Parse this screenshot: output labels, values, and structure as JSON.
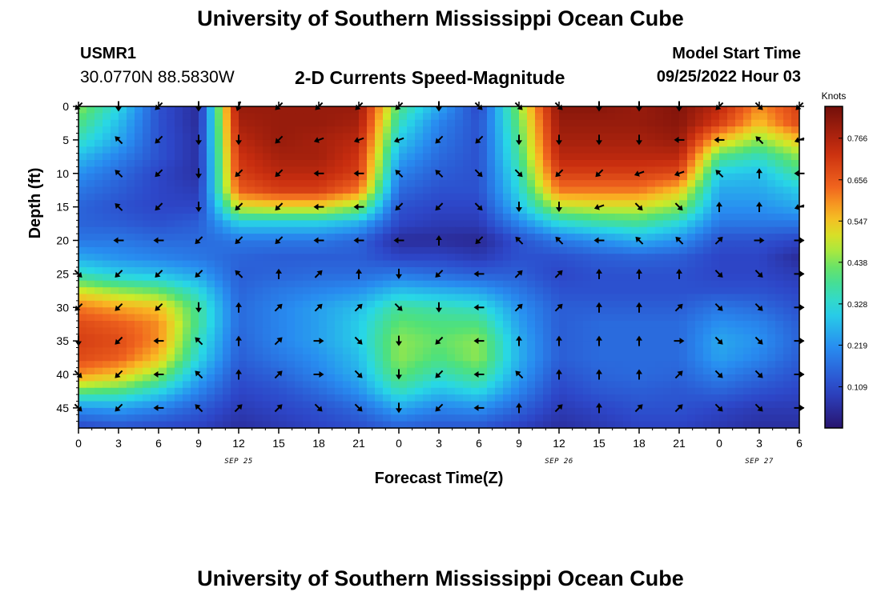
{
  "header": {
    "title": "University of Southern Mississippi Ocean Cube",
    "station_id": "USMR1",
    "station_coords": "30.0770N  88.5830W",
    "chart_title": "2-D Currents Speed-Magnitude",
    "model_start_label": "Model Start Time",
    "model_start_value": "09/25/2022 Hour 03"
  },
  "footer": {
    "title": "University of Southern Mississippi Ocean Cube"
  },
  "chart_data": {
    "type": "heatmap",
    "title": "2-D Currents Speed-Magnitude",
    "xlabel": "Forecast Time(Z)",
    "ylabel": "Depth (ft)",
    "x_tick_labels": [
      "0",
      "3",
      "6",
      "9",
      "12",
      "15",
      "18",
      "21",
      "0",
      "3",
      "6",
      "9",
      "12",
      "15",
      "18",
      "21",
      "0",
      "3",
      "6"
    ],
    "date_labels": [
      {
        "label": "SEP 25",
        "hour_index": 12
      },
      {
        "label": "SEP 26",
        "hour_index": 36
      },
      {
        "label": "SEP 27",
        "hour_index": 51
      }
    ],
    "xlim_hours": [
      0,
      54
    ],
    "y_tick_labels": [
      "0",
      "5",
      "10",
      "15",
      "20",
      "25",
      "30",
      "35",
      "40",
      "45"
    ],
    "ylim_ft": [
      0,
      48
    ],
    "y_inverted": true,
    "colorbar": {
      "label": "Knots",
      "tick_labels": [
        "0.766",
        "0.656",
        "0.547",
        "0.438",
        "0.328",
        "0.219",
        "0.109"
      ],
      "range": [
        0.0,
        0.85
      ]
    },
    "speed_hours": [
      0,
      3,
      6,
      9,
      12,
      15,
      18,
      21,
      24,
      27,
      30,
      33,
      36,
      39,
      42,
      45,
      48,
      51,
      54
    ],
    "speed_depths": [
      0,
      2.5,
      5,
      7.5,
      10,
      12.5,
      15,
      17.5,
      20,
      22.5,
      25,
      27.5,
      30,
      32.5,
      35,
      37.5,
      40,
      42.5,
      45,
      47.5
    ],
    "speed_knots": [
      [
        0.45,
        0.32,
        0.12,
        0.05,
        0.8,
        0.8,
        0.8,
        0.8,
        0.4,
        0.25,
        0.1,
        0.45,
        0.82,
        0.82,
        0.8,
        0.83,
        0.75,
        0.6,
        0.7
      ],
      [
        0.4,
        0.28,
        0.12,
        0.05,
        0.78,
        0.8,
        0.8,
        0.78,
        0.35,
        0.2,
        0.12,
        0.42,
        0.8,
        0.8,
        0.8,
        0.82,
        0.7,
        0.55,
        0.68
      ],
      [
        0.35,
        0.25,
        0.12,
        0.06,
        0.75,
        0.8,
        0.78,
        0.75,
        0.3,
        0.18,
        0.12,
        0.4,
        0.78,
        0.78,
        0.78,
        0.8,
        0.55,
        0.45,
        0.55
      ],
      [
        0.28,
        0.2,
        0.12,
        0.06,
        0.72,
        0.78,
        0.78,
        0.72,
        0.25,
        0.16,
        0.12,
        0.38,
        0.75,
        0.75,
        0.75,
        0.75,
        0.4,
        0.35,
        0.45
      ],
      [
        0.22,
        0.16,
        0.1,
        0.06,
        0.7,
        0.75,
        0.75,
        0.7,
        0.2,
        0.14,
        0.12,
        0.35,
        0.7,
        0.7,
        0.7,
        0.68,
        0.3,
        0.28,
        0.38
      ],
      [
        0.18,
        0.14,
        0.1,
        0.08,
        0.65,
        0.7,
        0.7,
        0.62,
        0.16,
        0.12,
        0.12,
        0.32,
        0.62,
        0.62,
        0.62,
        0.55,
        0.25,
        0.25,
        0.3
      ],
      [
        0.15,
        0.12,
        0.1,
        0.1,
        0.5,
        0.52,
        0.52,
        0.45,
        0.12,
        0.1,
        0.1,
        0.28,
        0.48,
        0.5,
        0.5,
        0.45,
        0.22,
        0.22,
        0.25
      ],
      [
        0.15,
        0.14,
        0.12,
        0.14,
        0.3,
        0.3,
        0.3,
        0.26,
        0.1,
        0.08,
        0.08,
        0.2,
        0.32,
        0.36,
        0.38,
        0.32,
        0.18,
        0.18,
        0.18
      ],
      [
        0.18,
        0.18,
        0.16,
        0.16,
        0.18,
        0.18,
        0.18,
        0.15,
        0.05,
        0.05,
        0.04,
        0.12,
        0.18,
        0.22,
        0.26,
        0.22,
        0.12,
        0.12,
        0.1
      ],
      [
        0.25,
        0.22,
        0.2,
        0.18,
        0.15,
        0.14,
        0.14,
        0.14,
        0.1,
        0.1,
        0.08,
        0.12,
        0.12,
        0.14,
        0.15,
        0.14,
        0.1,
        0.1,
        0.05
      ],
      [
        0.35,
        0.3,
        0.28,
        0.24,
        0.14,
        0.15,
        0.16,
        0.16,
        0.18,
        0.16,
        0.14,
        0.14,
        0.1,
        0.12,
        0.12,
        0.12,
        0.1,
        0.1,
        0.08
      ],
      [
        0.5,
        0.45,
        0.42,
        0.32,
        0.15,
        0.18,
        0.2,
        0.22,
        0.28,
        0.26,
        0.24,
        0.18,
        0.12,
        0.12,
        0.12,
        0.12,
        0.12,
        0.12,
        0.1
      ],
      [
        0.62,
        0.58,
        0.55,
        0.38,
        0.16,
        0.2,
        0.24,
        0.28,
        0.38,
        0.36,
        0.34,
        0.22,
        0.14,
        0.14,
        0.14,
        0.14,
        0.18,
        0.16,
        0.12
      ],
      [
        0.68,
        0.65,
        0.6,
        0.38,
        0.16,
        0.2,
        0.24,
        0.3,
        0.42,
        0.4,
        0.4,
        0.24,
        0.14,
        0.16,
        0.16,
        0.16,
        0.22,
        0.2,
        0.14
      ],
      [
        0.7,
        0.68,
        0.6,
        0.35,
        0.15,
        0.2,
        0.24,
        0.3,
        0.45,
        0.42,
        0.45,
        0.26,
        0.14,
        0.16,
        0.16,
        0.16,
        0.25,
        0.22,
        0.15
      ],
      [
        0.68,
        0.65,
        0.55,
        0.32,
        0.14,
        0.18,
        0.22,
        0.28,
        0.45,
        0.4,
        0.45,
        0.26,
        0.14,
        0.16,
        0.16,
        0.16,
        0.24,
        0.2,
        0.14
      ],
      [
        0.6,
        0.55,
        0.45,
        0.26,
        0.12,
        0.15,
        0.2,
        0.26,
        0.42,
        0.35,
        0.4,
        0.24,
        0.12,
        0.15,
        0.16,
        0.15,
        0.2,
        0.16,
        0.12
      ],
      [
        0.42,
        0.4,
        0.32,
        0.2,
        0.1,
        0.12,
        0.16,
        0.22,
        0.35,
        0.28,
        0.32,
        0.2,
        0.1,
        0.13,
        0.14,
        0.13,
        0.15,
        0.12,
        0.1
      ],
      [
        0.22,
        0.24,
        0.2,
        0.14,
        0.08,
        0.1,
        0.12,
        0.16,
        0.25,
        0.2,
        0.22,
        0.15,
        0.08,
        0.1,
        0.12,
        0.12,
        0.1,
        0.08,
        0.08
      ],
      [
        0.12,
        0.14,
        0.12,
        0.1,
        0.06,
        0.08,
        0.1,
        0.12,
        0.16,
        0.14,
        0.14,
        0.1,
        0.06,
        0.08,
        0.1,
        0.1,
        0.08,
        0.06,
        0.06
      ]
    ],
    "arrow_hours": [
      0,
      3,
      6,
      9,
      12,
      15,
      18,
      21,
      24,
      27,
      30,
      33,
      36,
      39,
      42,
      45,
      48,
      51,
      54
    ],
    "arrow_depths": [
      0,
      5,
      10,
      15,
      20,
      25,
      30,
      35,
      40,
      45
    ],
    "arrow_direction_deg": [
      [
        225,
        180,
        225,
        180,
        200,
        225,
        225,
        225,
        225,
        180,
        135,
        135,
        135,
        180,
        180,
        180,
        225,
        135,
        225
      ],
      [
        null,
        315,
        225,
        180,
        180,
        225,
        250,
        250,
        250,
        225,
        225,
        180,
        180,
        180,
        180,
        270,
        270,
        315,
        250
      ],
      [
        null,
        315,
        225,
        180,
        225,
        225,
        270,
        270,
        315,
        315,
        135,
        135,
        225,
        225,
        250,
        250,
        315,
        0,
        270
      ],
      [
        null,
        315,
        225,
        180,
        225,
        225,
        270,
        270,
        225,
        225,
        135,
        180,
        180,
        250,
        135,
        135,
        0,
        0,
        250
      ],
      [
        null,
        270,
        270,
        225,
        225,
        225,
        270,
        270,
        270,
        0,
        225,
        315,
        315,
        270,
        315,
        315,
        45,
        90,
        90
      ],
      [
        135,
        225,
        225,
        225,
        315,
        0,
        45,
        0,
        180,
        225,
        270,
        45,
        45,
        0,
        0,
        0,
        135,
        135,
        90
      ],
      [
        225,
        225,
        225,
        180,
        0,
        45,
        45,
        45,
        135,
        180,
        270,
        45,
        45,
        0,
        0,
        45,
        135,
        135,
        90
      ],
      [
        180,
        225,
        270,
        315,
        0,
        45,
        90,
        135,
        180,
        225,
        270,
        0,
        0,
        0,
        0,
        90,
        135,
        135,
        90
      ],
      [
        135,
        225,
        270,
        315,
        0,
        45,
        90,
        135,
        180,
        225,
        270,
        315,
        0,
        0,
        0,
        45,
        135,
        135,
        90
      ],
      [
        135,
        225,
        270,
        315,
        45,
        45,
        135,
        135,
        180,
        225,
        270,
        0,
        45,
        0,
        45,
        45,
        135,
        135,
        90
      ]
    ]
  }
}
